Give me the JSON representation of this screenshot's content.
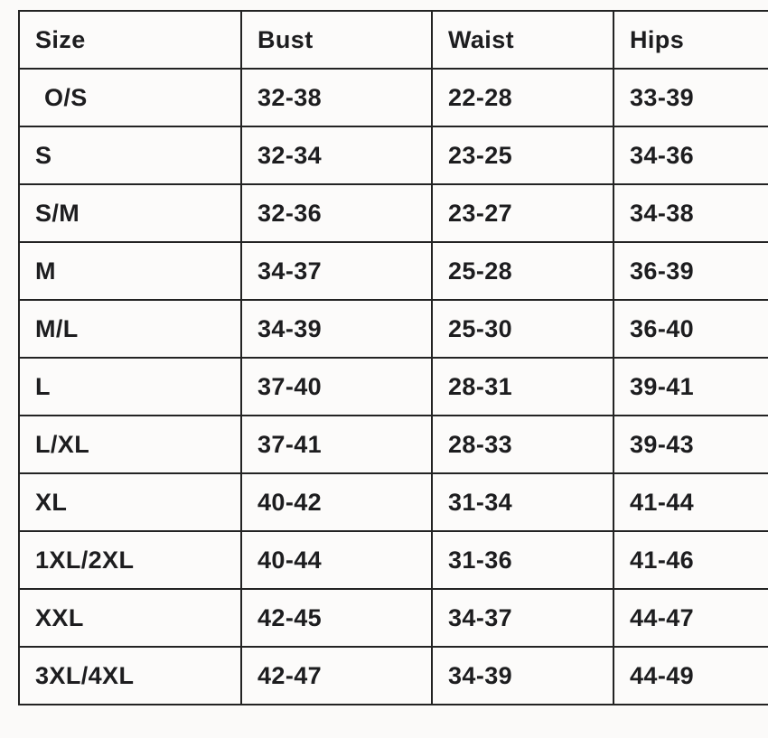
{
  "colors": {
    "background": "#fbfaf9",
    "table_border": "#232323",
    "text": "#1d1d1f"
  },
  "chart_data": {
    "type": "table",
    "columns": [
      "Size",
      "Bust",
      "Waist",
      "Hips"
    ],
    "rows": [
      [
        "O/S",
        "32-38",
        "22-28",
        "33-39"
      ],
      [
        "S",
        "32-34",
        "23-25",
        "34-36"
      ],
      [
        "S/M",
        "32-36",
        "23-27",
        "34-38"
      ],
      [
        "M",
        "34-37",
        "25-28",
        "36-39"
      ],
      [
        "M/L",
        "34-39",
        "25-30",
        "36-40"
      ],
      [
        "L",
        "37-40",
        "28-31",
        "39-41"
      ],
      [
        "L/XL",
        "37-41",
        "28-33",
        "39-43"
      ],
      [
        "XL",
        "40-42",
        "31-34",
        "41-44"
      ],
      [
        "1XL/2XL",
        "40-44",
        "31-36",
        "41-46"
      ],
      [
        "XXL",
        "42-45",
        "34-37",
        "44-47"
      ],
      [
        "3XL/4XL",
        "42-47",
        "34-39",
        "44-49"
      ]
    ]
  }
}
